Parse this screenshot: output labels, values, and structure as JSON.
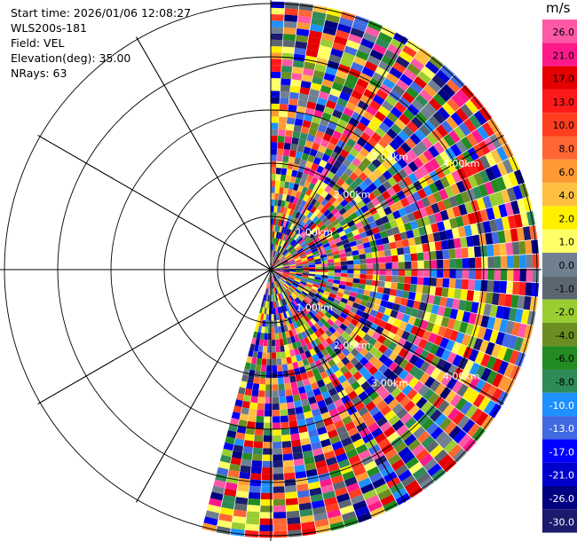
{
  "header": {
    "start_time": "Start time: 2026/01/06 12:08:27",
    "instrument": "WLS200s-181",
    "field": "Field: VEL",
    "elevation": "Elevation(deg): 35.00",
    "nrays": "NRays: 63"
  },
  "colorbar": {
    "unit": "m/s",
    "ticks": [
      "26.0",
      "21.0",
      "17.0",
      "13.0",
      "10.0",
      "8.0",
      "6.0",
      "4.0",
      "2.0",
      "1.0",
      "0.0",
      "-1.0",
      "-2.0",
      "-4.0",
      "-6.0",
      "-8.0",
      "-10.0",
      "-13.0",
      "-17.0",
      "-21.0",
      "-26.0",
      "-30.0"
    ],
    "colors": [
      "#ff59a6",
      "#ff1a8c",
      "#e60000",
      "#ff1a1a",
      "#ff3d1f",
      "#ff6633",
      "#ff9933",
      "#ffbf40",
      "#fff000",
      "#ffff66",
      "#708090",
      "#5c6670",
      "#9acd32",
      "#6b8e23",
      "#228b22",
      "#2e8b57",
      "#1e90ff",
      "#4169e1",
      "#0000ff",
      "#0000cd",
      "#000080",
      "#1a1a6e"
    ]
  },
  "chart_data": {
    "type": "heatmap",
    "subtype": "polar PPI scan",
    "field": "VEL",
    "units": "m/s",
    "nrays": 63,
    "azimuth_coverage_deg": [
      0,
      195
    ],
    "range_rings_km": [
      "1.00km",
      "2.00km",
      "3.00km",
      "4.00km"
    ],
    "color_range": [
      -30.0,
      26.0
    ],
    "note_values": "Velocity values appear essentially random noise across all gates"
  }
}
